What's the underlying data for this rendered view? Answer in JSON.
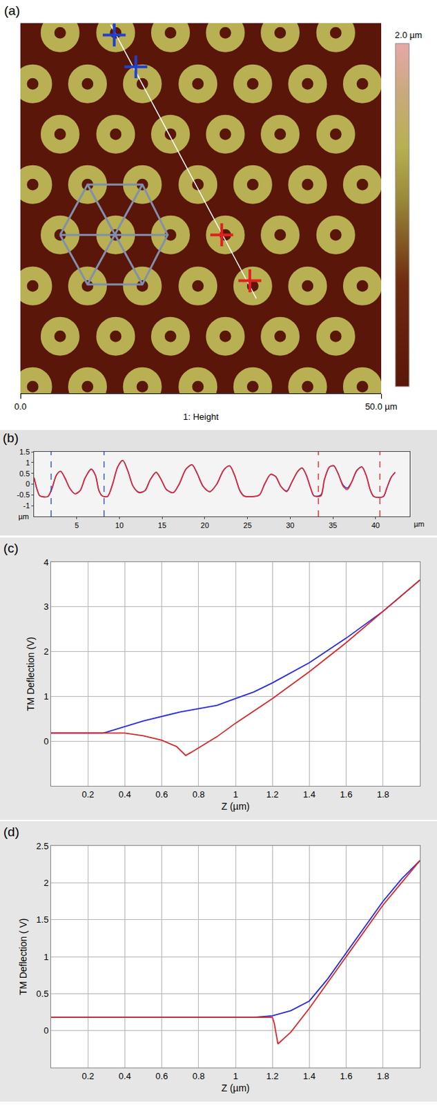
{
  "chart_data": [
    {
      "type": "scatter",
      "panel": "(a)",
      "xlabel": "1: Height",
      "xlim": [
        0,
        50
      ],
      "xticks": [
        {
          "value": 0,
          "label": "0.0"
        },
        {
          "value": 50,
          "label": "50.0 µm"
        }
      ],
      "ylim": [
        0,
        50
      ],
      "tick_labels": "x",
      "rings": {
        "height": 1.4,
        "x": [
          5.5,
          13.2,
          20.8,
          28.4,
          36.0,
          43.7,
          1.7,
          9.3,
          16.9,
          24.6,
          32.2,
          39.8,
          47.4,
          5.5,
          13.2,
          20.8,
          28.4,
          36.0,
          43.7,
          1.7,
          9.3,
          16.9,
          24.6,
          32.2,
          39.8,
          47.4,
          5.5,
          13.2,
          20.8,
          28.4,
          36.0,
          43.7,
          1.7,
          9.3,
          16.9,
          24.6,
          32.2,
          39.8,
          47.4,
          5.5,
          13.2,
          20.8,
          28.4,
          36.0,
          43.7,
          1.7,
          9.3,
          16.9,
          24.6,
          32.2,
          39.8,
          47.4
        ],
        "y": [
          48.7,
          48.7,
          48.7,
          48.7,
          48.7,
          48.7,
          41.8,
          41.8,
          41.8,
          41.8,
          41.8,
          41.8,
          41.8,
          35.0,
          35.0,
          35.0,
          35.0,
          35.0,
          35.0,
          28.2,
          28.2,
          28.2,
          28.2,
          28.2,
          28.2,
          28.2,
          21.4,
          21.4,
          21.4,
          21.4,
          21.4,
          21.4,
          14.5,
          14.5,
          14.5,
          14.5,
          14.5,
          14.5,
          14.5,
          7.7,
          7.7,
          7.7,
          7.7,
          7.7,
          7.7,
          0.9,
          0.9,
          0.9,
          0.9,
          0.9,
          0.9,
          0.9
        ]
      },
      "colorbar": {
        "range": [
          0,
          2.0
        ],
        "label": "2.0 µm"
      },
      "hexagon": {
        "x": [
          5.5,
          9.3,
          16.9,
          20.4,
          16.9,
          9.3
        ],
        "y": [
          21.4,
          28.2,
          28.2,
          21.4,
          14.7,
          14.7
        ]
      },
      "profile_line": {
        "x": [
          12.5,
          32.7
        ],
        "y": [
          49.8,
          12.8
        ]
      },
      "cursors": [
        {
          "color": "#2040d0",
          "x": [
            13.0,
            16.0
          ],
          "y": [
            48.4,
            44.1
          ]
        },
        {
          "color": "#e02020",
          "x": [
            27.9,
            31.8
          ],
          "y": [
            21.4,
            15.2
          ]
        }
      ]
    },
    {
      "type": "line",
      "panel": "(b)",
      "xlabel": "µm",
      "ylabel": "µm",
      "xlim": [
        0,
        44
      ],
      "xticks": [
        5,
        10,
        15,
        20,
        25,
        30,
        35,
        40
      ],
      "ylim": [
        -1.5,
        1.5
      ],
      "yticks": [
        1.5,
        1,
        0.5,
        0,
        -0.5,
        -1
      ],
      "grid": false,
      "x": [
        0.0,
        0.4,
        0.7,
        1.6,
        2.1,
        2.6,
        3.1,
        3.6,
        4.2,
        4.8,
        5.4,
        6.0,
        6.7,
        7.2,
        7.6,
        8.0,
        8.6,
        9.2,
        9.8,
        10.4,
        11.0,
        11.6,
        12.3,
        13.0,
        13.6,
        14.3,
        14.9,
        15.5,
        16.3,
        17.0,
        17.8,
        18.5,
        19.1,
        19.8,
        20.6,
        21.4,
        22.2,
        22.9,
        23.5,
        24.1,
        24.6,
        25.6,
        26.4,
        27.0,
        27.7,
        28.3,
        28.9,
        29.6,
        30.2,
        30.9,
        31.4,
        31.9,
        32.4,
        32.8,
        33.6,
        34.0,
        34.6,
        35.1,
        35.6,
        36.2,
        36.7,
        37.2,
        37.8,
        38.4,
        38.9,
        39.4,
        39.8,
        40.9,
        41.3,
        41.8,
        42.3
      ],
      "series": [
        {
          "color": "#2a3ad0",
          "values": [
            0.3,
            -0.3,
            -0.55,
            -0.58,
            -0.2,
            0.4,
            0.6,
            0.3,
            -0.2,
            -0.45,
            -0.3,
            0.3,
            0.7,
            0.4,
            -0.3,
            -0.55,
            -0.58,
            0.0,
            0.8,
            1.1,
            0.6,
            -0.1,
            -0.38,
            -0.3,
            0.2,
            0.55,
            0.2,
            -0.25,
            -0.4,
            0.0,
            0.7,
            0.9,
            0.5,
            -0.1,
            -0.35,
            0.0,
            0.65,
            0.85,
            0.4,
            -0.3,
            -0.55,
            -0.58,
            -0.5,
            0.0,
            0.45,
            0.35,
            -0.1,
            -0.32,
            0.1,
            0.6,
            0.75,
            0.4,
            -0.2,
            -0.55,
            -0.5,
            0.2,
            0.8,
            0.85,
            0.5,
            -0.05,
            -0.18,
            0.1,
            0.62,
            0.8,
            0.4,
            -0.3,
            -0.58,
            -0.58,
            -0.2,
            0.3,
            0.55
          ]
        },
        {
          "color": "#e8262a",
          "values": [
            0.3,
            -0.3,
            -0.55,
            -0.58,
            -0.2,
            0.4,
            0.6,
            0.3,
            -0.2,
            -0.45,
            -0.3,
            0.3,
            0.7,
            0.4,
            -0.3,
            -0.55,
            -0.58,
            0.0,
            0.8,
            1.1,
            0.6,
            -0.1,
            -0.4,
            -0.3,
            0.2,
            0.55,
            0.2,
            -0.25,
            -0.4,
            0.0,
            0.7,
            0.9,
            0.5,
            -0.1,
            -0.35,
            0.0,
            0.65,
            0.85,
            0.4,
            -0.3,
            -0.55,
            -0.58,
            -0.5,
            0.0,
            0.45,
            0.35,
            -0.1,
            -0.35,
            0.1,
            0.6,
            0.75,
            0.4,
            -0.2,
            -0.55,
            -0.55,
            0.2,
            0.8,
            0.85,
            0.5,
            -0.1,
            -0.25,
            0.1,
            0.65,
            0.8,
            0.4,
            -0.3,
            -0.58,
            -0.58,
            -0.2,
            0.3,
            0.55
          ]
        }
      ],
      "cursor_lines": [
        {
          "color": "#2040d0",
          "x": [
            2.0,
            8.2
          ]
        },
        {
          "color": "#e02020",
          "x": [
            33.3,
            40.5
          ]
        }
      ]
    },
    {
      "type": "line",
      "panel": "(c)",
      "xlabel": "Z (µm)",
      "ylabel": "TM Deflection (V)",
      "xlim": [
        0,
        2
      ],
      "xticks": [
        0.2,
        0.4,
        0.6,
        0.8,
        1,
        1.2,
        1.4,
        1.6,
        1.8
      ],
      "ylim": [
        -1,
        4
      ],
      "yticks": [
        0,
        1,
        2,
        3,
        4
      ],
      "grid": true,
      "series": [
        {
          "color": "#2b2bd6",
          "x": [
            0,
            0.28,
            0.3,
            0.5,
            0.7,
            0.9,
            1.0,
            1.1,
            1.2,
            1.4,
            1.6,
            1.8,
            2.0
          ],
          "values": [
            0.18,
            0.18,
            0.2,
            0.45,
            0.65,
            0.8,
            0.95,
            1.1,
            1.3,
            1.75,
            2.3,
            2.9,
            3.6
          ]
        },
        {
          "color": "#d42a2a",
          "x": [
            0,
            0.4,
            0.5,
            0.6,
            0.68,
            0.73,
            0.76,
            0.9,
            1.0,
            1.2,
            1.4,
            1.6,
            1.8,
            2.0
          ],
          "values": [
            0.18,
            0.18,
            0.12,
            0.02,
            -0.12,
            -0.32,
            -0.25,
            0.1,
            0.4,
            0.95,
            1.55,
            2.2,
            2.9,
            3.6
          ]
        }
      ]
    },
    {
      "type": "line",
      "panel": "(d)",
      "xlabel": "Z (µm)",
      "ylabel": "TM Deflection ( V)",
      "xlim": [
        0,
        2
      ],
      "xticks": [
        0.2,
        0.4,
        0.6,
        0.8,
        1,
        1.2,
        1.4,
        1.6,
        1.8
      ],
      "ylim": [
        -0.5,
        2.5
      ],
      "yticks": [
        0,
        0.5,
        1,
        1.5,
        2,
        2.5
      ],
      "grid": true,
      "series": [
        {
          "color": "#2b2bd6",
          "x": [
            0,
            1.1,
            1.2,
            1.3,
            1.4,
            1.5,
            1.6,
            1.7,
            1.8,
            1.9,
            2.0
          ],
          "values": [
            0.18,
            0.18,
            0.2,
            0.27,
            0.4,
            0.7,
            1.05,
            1.4,
            1.75,
            2.05,
            2.3
          ]
        },
        {
          "color": "#d42a2a",
          "x": [
            0,
            1.2,
            1.21,
            1.23,
            1.3,
            1.4,
            1.5,
            1.6,
            1.7,
            1.8,
            1.9,
            2.0
          ],
          "values": [
            0.18,
            0.18,
            0.1,
            -0.18,
            -0.02,
            0.3,
            0.65,
            1.0,
            1.35,
            1.7,
            2.0,
            2.3
          ]
        }
      ]
    }
  ]
}
